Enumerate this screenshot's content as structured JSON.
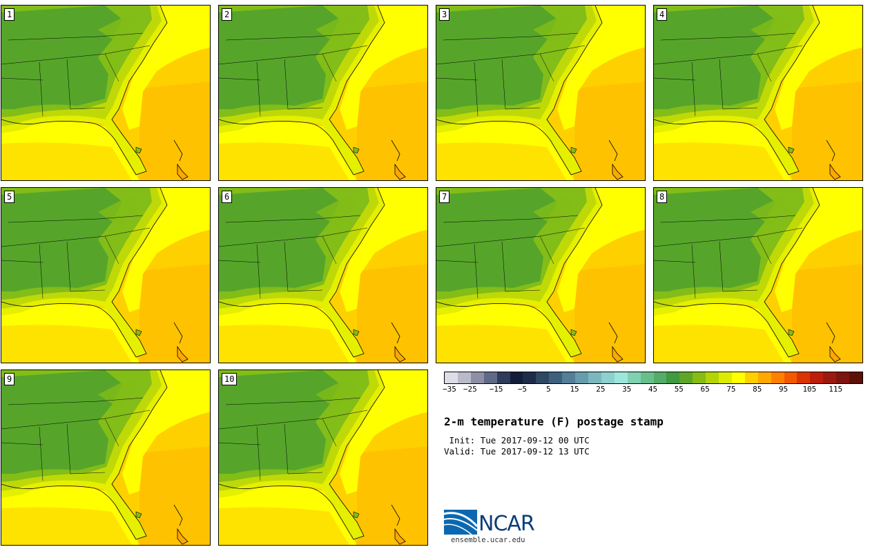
{
  "panels": [
    {
      "label": "1"
    },
    {
      "label": "2"
    },
    {
      "label": "3"
    },
    {
      "label": "4"
    },
    {
      "label": "5"
    },
    {
      "label": "6"
    },
    {
      "label": "7"
    },
    {
      "label": "8"
    },
    {
      "label": "9"
    },
    {
      "label": "10"
    }
  ],
  "colorbar": {
    "colors": [
      "#dcdde6",
      "#b9bac9",
      "#8d8fa6",
      "#5f6a86",
      "#2f3b5a",
      "#121d37",
      "#1d2c48",
      "#2e4863",
      "#3f607c",
      "#547e96",
      "#679cab",
      "#7bb7bd",
      "#8dd0cd",
      "#9de6db",
      "#7fd1b1",
      "#68bf8c",
      "#54ab6a",
      "#3f9a40",
      "#5ea628",
      "#86bc14",
      "#b4d408",
      "#dcec00",
      "#ffff00",
      "#ffd000",
      "#ffa800",
      "#ff8000",
      "#f25a00",
      "#da3400",
      "#bb1f0c",
      "#9a1a10",
      "#7c1510",
      "#5c1008"
    ],
    "tick_labels": [
      "−35",
      "−25",
      "−15",
      "−5",
      "5",
      "15",
      "25",
      "35",
      "45",
      "55",
      "65",
      "75",
      "85",
      "95",
      "105",
      "115"
    ]
  },
  "title": "2-m temperature (F) postage stamp",
  "init_line": " Init: Tue 2017-09-12 00 UTC",
  "valid_line": "Valid: Tue 2017-09-12 13 UTC",
  "logo": {
    "word": "NCAR",
    "url": "ensemble.ucar.edu",
    "color": "#0b3d78"
  },
  "map_colors": {
    "land_cool": "#56a52a",
    "land_mid": "#82bd18",
    "land_warm": "#bfd908",
    "coastal": "#e5ef00",
    "sea_near": "#ffff00",
    "sea_far": "#ffd000",
    "sea_warm": "#ffa800"
  }
}
